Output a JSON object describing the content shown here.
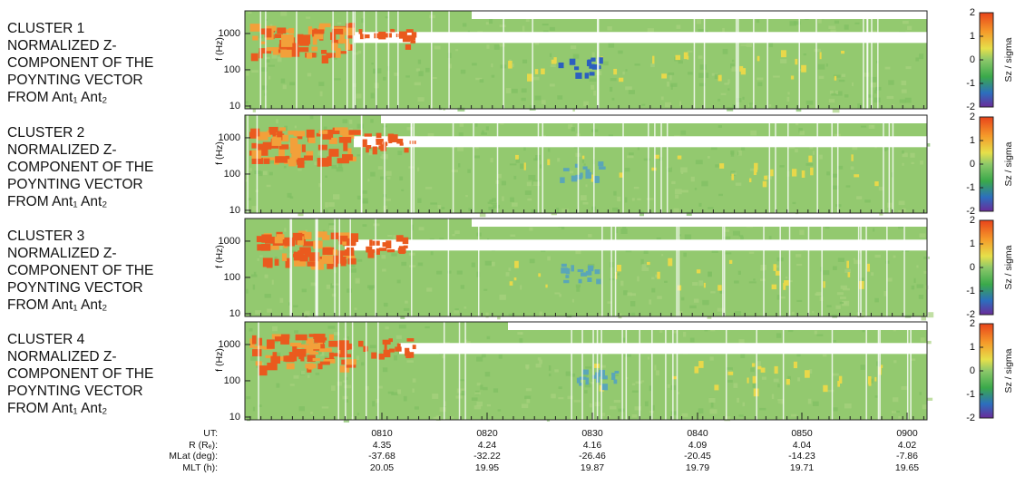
{
  "panels": [
    {
      "title_lines": [
        "CLUSTER 1",
        "NORMALIZED Z-",
        "COMPONENT OF THE",
        "POYNTING VECTOR",
        "FROM Ant₁ Ant₂"
      ]
    },
    {
      "title_lines": [
        "CLUSTER 2",
        "NORMALIZED Z-",
        "COMPONENT OF THE",
        "POYNTING VECTOR",
        "FROM Ant₁ Ant₂"
      ]
    },
    {
      "title_lines": [
        "CLUSTER 3",
        "NORMALIZED Z-",
        "COMPONENT OF THE",
        "POYNTING VECTOR",
        "FROM Ant₁ Ant₂"
      ]
    },
    {
      "title_lines": [
        "CLUSTER 4",
        "NORMALIZED Z-",
        "COMPONENT OF THE",
        "POYNTING VECTOR",
        "FROM Ant₁ Ant₂"
      ]
    }
  ],
  "y_axis": {
    "label": "f (Hz)",
    "ylim": [
      8.4,
      4200
    ],
    "yticks": [
      10,
      100,
      1000
    ],
    "log": true
  },
  "colorbar": {
    "label": "Sz / sigma",
    "lim": [
      -2,
      2
    ],
    "ticks": [
      2,
      1,
      0,
      -1,
      -2
    ]
  },
  "x_table": {
    "row_labels": [
      "UT:",
      "R (Rₑ):",
      "MLat (deg):",
      "MLT (h):"
    ],
    "columns": [
      [
        "0810",
        4.35,
        -37.68,
        20.05
      ],
      [
        "0820",
        4.24,
        -32.22,
        19.95
      ],
      [
        "0830",
        4.16,
        -26.46,
        19.87
      ],
      [
        "0840",
        4.09,
        -20.45,
        19.79
      ],
      [
        "0850",
        4.04,
        -14.23,
        19.71
      ],
      [
        "0900",
        4.02,
        -7.86,
        19.65
      ]
    ]
  }
}
